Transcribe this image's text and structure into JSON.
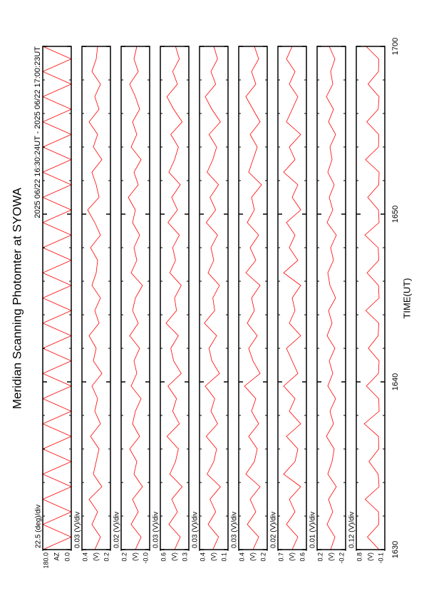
{
  "chart_data": {
    "type": "line",
    "title": "Meridian Scanning Photomter at SYOWA",
    "subtitle": "2025 06/22 16:30:24UT - 2025 06/22 17:00:23UT",
    "xlabel": "TIME(UT)",
    "xlim": [
      0,
      30
    ],
    "xticks": [
      {
        "value": 0,
        "label": "1630"
      },
      {
        "value": 10,
        "label": "1640"
      },
      {
        "value": 20,
        "label": "1650"
      },
      {
        "value": 30,
        "label": "1700"
      }
    ],
    "xminorticks": [
      2,
      4,
      6,
      8,
      12,
      14,
      16,
      18,
      22,
      24,
      26,
      28
    ],
    "x": [
      0,
      0.75,
      1.5,
      2.25,
      3,
      3.75,
      4.5,
      5.25,
      6,
      6.75,
      7.5,
      8.25,
      9,
      9.75,
      10.5,
      11.25,
      12,
      12.75,
      13.5,
      14.25,
      15,
      15.75,
      16.5,
      17.25,
      18,
      18.75,
      19.5,
      20.25,
      21,
      21.75,
      22.5,
      23.25,
      24,
      24.75,
      25.5,
      26.25,
      27,
      27.75,
      28.5,
      29.25,
      30
    ],
    "panels": [
      {
        "ylabel": "AZ",
        "scale": "22.5 (deg)/div",
        "color": "#ff0000",
        "ylim": [
          0,
          180
        ],
        "yticks": [
          {
            "value": 0,
            "label": "0.0"
          },
          {
            "value": 180,
            "label": "180.0"
          }
        ],
        "values": [
          180,
          0,
          180,
          0,
          180,
          0,
          180,
          0,
          180,
          0,
          180,
          0,
          180,
          0,
          180,
          0,
          180,
          0,
          180,
          0,
          180,
          0,
          180,
          0,
          180,
          0,
          180,
          0,
          180,
          0,
          180,
          0,
          180,
          0,
          180,
          0,
          180,
          0,
          180,
          0,
          180
        ]
      },
      {
        "ylabel": "(V)",
        "scale": "0.03 (V)/div",
        "color": "#ff0000",
        "ylim": [
          0.2,
          0.4
        ],
        "yticks": [
          0.2,
          0.4
        ],
        "values": [
          0.31,
          0.27,
          0.33,
          0.29,
          0.35,
          0.26,
          0.32,
          0.3,
          0.28,
          0.34,
          0.27,
          0.31,
          0.29,
          0.33,
          0.26,
          0.32,
          0.3,
          0.35,
          0.28,
          0.31,
          0.27,
          0.33,
          0.3,
          0.29,
          0.34,
          0.27,
          0.31,
          0.36,
          0.28,
          0.3,
          0.33,
          0.26,
          0.32,
          0.29,
          0.35,
          0.28,
          0.31,
          0.27,
          0.33,
          0.3,
          0.29
        ]
      },
      {
        "ylabel": "(V)",
        "scale": "0.02 (V)/div",
        "color": "#ff0000",
        "ylim": [
          0,
          0.2
        ],
        "yticks": [
          {
            "value": 0,
            "label": "-0.0"
          },
          0.2
        ],
        "values": [
          0.1,
          0.06,
          0.13,
          0.08,
          0.12,
          0.05,
          0.11,
          0.09,
          0.14,
          0.07,
          0.12,
          0.1,
          0.06,
          0.13,
          0.09,
          0.11,
          0.07,
          0.14,
          0.08,
          0.12,
          0.1,
          0.05,
          0.13,
          0.09,
          0.11,
          0.07,
          0.12,
          0.1,
          0.15,
          0.08,
          0.11,
          0.06,
          0.13,
          0.09,
          0.12,
          0.07,
          0.1,
          0.14,
          0.08,
          0.11,
          0.09
        ]
      },
      {
        "ylabel": "(V)",
        "scale": "0.03 (V)/div",
        "color": "#ff0000",
        "ylim": [
          0.3,
          0.6
        ],
        "yticks": [
          0.3,
          0.6
        ],
        "values": [
          0.45,
          0.39,
          0.51,
          0.42,
          0.48,
          0.37,
          0.5,
          0.44,
          0.41,
          0.53,
          0.4,
          0.47,
          0.43,
          0.52,
          0.38,
          0.46,
          0.49,
          0.41,
          0.54,
          0.43,
          0.45,
          0.38,
          0.5,
          0.44,
          0.47,
          0.4,
          0.52,
          0.42,
          0.48,
          0.39,
          0.51,
          0.45,
          0.41,
          0.49,
          0.37,
          0.46,
          0.53,
          0.42,
          0.47,
          0.4,
          0.44
        ]
      },
      {
        "ylabel": "(V)",
        "scale": "0.03 (V)/div",
        "color": "#ff0000",
        "ylim": [
          0.1,
          0.4
        ],
        "yticks": [
          0.1,
          0.4
        ],
        "values": [
          0.26,
          0.2,
          0.31,
          0.23,
          0.29,
          0.18,
          0.32,
          0.25,
          0.22,
          0.33,
          0.21,
          0.28,
          0.24,
          0.34,
          0.19,
          0.27,
          0.3,
          0.22,
          0.35,
          0.24,
          0.26,
          0.19,
          0.31,
          0.25,
          0.28,
          0.21,
          0.33,
          0.23,
          0.29,
          0.2,
          0.32,
          0.26,
          0.22,
          0.3,
          0.18,
          0.27,
          0.34,
          0.23,
          0.28,
          0.21,
          0.25
        ]
      },
      {
        "ylabel": "(V)",
        "scale": "0.03 (V)/div",
        "color": "#ff0000",
        "ylim": [
          0.2,
          0.4
        ],
        "yticks": [
          0.2,
          0.4
        ],
        "values": [
          0.3,
          0.26,
          0.34,
          0.28,
          0.32,
          0.25,
          0.35,
          0.29,
          0.27,
          0.33,
          0.26,
          0.31,
          0.28,
          0.36,
          0.25,
          0.3,
          0.33,
          0.27,
          0.34,
          0.29,
          0.31,
          0.25,
          0.35,
          0.28,
          0.32,
          0.26,
          0.34,
          0.29,
          0.31,
          0.24,
          0.33,
          0.3,
          0.27,
          0.32,
          0.25,
          0.3,
          0.35,
          0.28,
          0.31,
          0.26,
          0.29
        ]
      },
      {
        "ylabel": "(V)",
        "scale": "0.02 (V)/div",
        "color": "#ff0000",
        "ylim": [
          0.6,
          0.7
        ],
        "yticks": [
          0.6,
          0.7
        ],
        "values": [
          0.65,
          0.63,
          0.67,
          0.64,
          0.66,
          0.62,
          0.68,
          0.64,
          0.63,
          0.67,
          0.62,
          0.66,
          0.64,
          0.68,
          0.63,
          0.65,
          0.67,
          0.62,
          0.66,
          0.64,
          0.65,
          0.62,
          0.68,
          0.63,
          0.66,
          0.64,
          0.67,
          0.62,
          0.65,
          0.63,
          0.68,
          0.64,
          0.66,
          0.62,
          0.67,
          0.65,
          0.63,
          0.66,
          0.64,
          0.67,
          0.65
        ]
      },
      {
        "ylabel": "(V)",
        "scale": "0.01 (V)/div",
        "color": "#ff0000",
        "ylim": [
          -0.2,
          0.2
        ],
        "yticks": [
          -0.2,
          0.2
        ],
        "values": [
          0.01,
          -0.05,
          0.06,
          -0.02,
          0.04,
          -0.07,
          0.05,
          -0.01,
          -0.04,
          0.07,
          -0.03,
          0.02,
          -0.06,
          0.05,
          -0.02,
          0.03,
          -0.05,
          0.06,
          -0.01,
          0.04,
          -0.06,
          0.02,
          0.05,
          -0.03,
          0.01,
          -0.07,
          0.06,
          -0.02,
          0.03,
          -0.04,
          0.05,
          -0.01,
          0.02,
          -0.06,
          0.04,
          -0.03,
          0.07,
          -0.02,
          0.01,
          -0.05,
          0.03
        ]
      },
      {
        "ylabel": "(V)",
        "scale": "0.12 (V)/div",
        "color": "#ff0000",
        "ylim": [
          -0.1,
          0.8
        ],
        "yticks": [
          -0.1,
          0.8
        ],
        "values": [
          0.08,
          0.45,
          0.09,
          0.1,
          0.52,
          0.08,
          0.11,
          0.4,
          0.09,
          0.1,
          0.55,
          0.08,
          0.09,
          0.48,
          0.1,
          0.08,
          0.42,
          0.11,
          0.09,
          0.5,
          0.08,
          0.1,
          0.46,
          0.09,
          0.11,
          0.53,
          0.08,
          0.1,
          0.44,
          0.09,
          0.08,
          0.51,
          0.1,
          0.09,
          0.47,
          0.11,
          0.08,
          0.43,
          0.1,
          0.09,
          0.49
        ]
      }
    ]
  }
}
